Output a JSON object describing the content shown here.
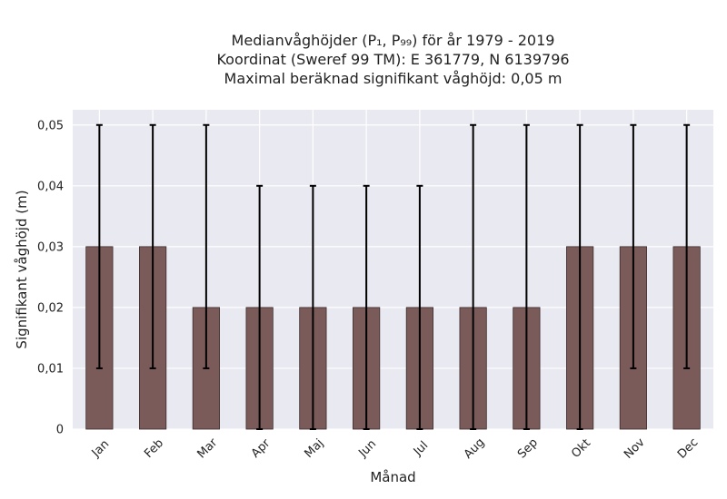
{
  "chart_data": {
    "type": "bar",
    "title_lines": [
      "Medianvåghöjder (P₁, P₉₉) för år 1979 - 2019",
      "Koordinat (Sweref 99 TM): E 361779, N 6139796",
      "Maximal beräknad signifikant våghöjd: 0,05 m"
    ],
    "xlabel": "Månad",
    "ylabel": "Signifikant våghöjd (m)",
    "categories": [
      "Jan",
      "Feb",
      "Mar",
      "Apr",
      "Maj",
      "Jun",
      "Jul",
      "Aug",
      "Sep",
      "Okt",
      "Nov",
      "Dec"
    ],
    "values": [
      0.03,
      0.03,
      0.02,
      0.02,
      0.02,
      0.02,
      0.02,
      0.02,
      0.02,
      0.03,
      0.03,
      0.03
    ],
    "error_low": [
      0.01,
      0.01,
      0.01,
      0.0,
      0.0,
      0.0,
      0.0,
      0.0,
      0.0,
      0.0,
      0.01,
      0.01
    ],
    "error_high": [
      0.05,
      0.05,
      0.05,
      0.04,
      0.04,
      0.04,
      0.04,
      0.05,
      0.05,
      0.05,
      0.05,
      0.05
    ],
    "ylim": [
      0,
      0.0525
    ],
    "yticks": [
      0,
      0.01,
      0.02,
      0.03,
      0.04,
      0.05
    ],
    "ytick_labels": [
      "0",
      "0,01",
      "0,02",
      "0,03",
      "0,04",
      "0,05"
    ],
    "grid": true,
    "colors": {
      "bar_fill": "#7b5a5a",
      "bar_edge": "#3a2a2a",
      "plot_background": "#e9e9f1",
      "grid": "#ffffff",
      "error_bar": "#000000"
    }
  }
}
